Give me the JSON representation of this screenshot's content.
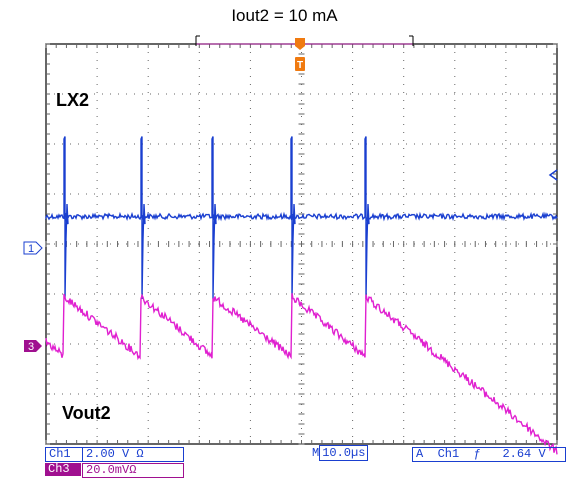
{
  "chart_data": {
    "type": "line",
    "title": "Iout2 = 10 mA",
    "series": [
      {
        "name": "LX2",
        "channel": "1",
        "color": "#1a3fd0",
        "baseline_div": 3.45,
        "pulse_times_div": [
          0.35,
          1.85,
          3.25,
          4.8,
          6.25
        ]
      },
      {
        "name": "Vout2",
        "channel": "3",
        "color": "#e020d0",
        "period_div": 1.45,
        "first_rise_div": 0.35,
        "peak_div": 5.05,
        "trough_div": 6.25
      }
    ],
    "xlim": [
      0,
      10
    ],
    "ylim": [
      0,
      8
    ],
    "grid": true
  },
  "caption": "Iout2 = 10 mA",
  "labels": {
    "lx2": "LX2",
    "vout2": "Vout2",
    "ch1_marker": "1",
    "ch3_marker": "3",
    "trigger_marker": "T"
  },
  "readouts": {
    "ch1_name": "Ch1",
    "ch1_scale": "2.00 V Ω",
    "ch3_name": "Ch3",
    "ch3_scale": "20.0mVΩ",
    "m_label": "M",
    "timebase": "10.0µs",
    "a_label": "A",
    "trigger_ch": "Ch1",
    "trigger_slope": "ƒ",
    "trigger_level": "2.64 V"
  },
  "colors": {
    "ch1": "#1a3fd0",
    "ch3": "#e020d0",
    "trigger": "#f07a10",
    "grid": "#666666"
  }
}
